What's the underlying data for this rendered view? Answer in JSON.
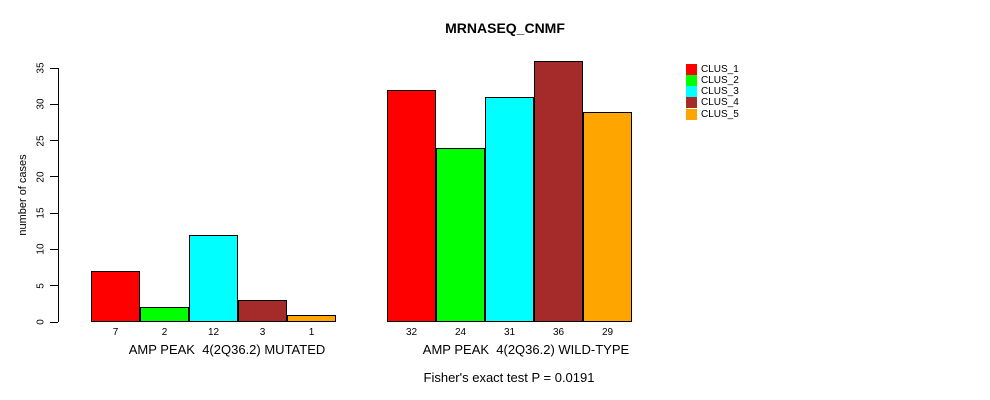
{
  "chart_data": {
    "type": "bar",
    "title": "MRNASEQ_CNMF",
    "xlabel": "",
    "ylabel": "number of cases",
    "ylim": [
      0,
      35
    ],
    "yticks": [
      0,
      5,
      10,
      15,
      20,
      25,
      30,
      35
    ],
    "grid": false,
    "legend_position": "right",
    "categories": [
      "AMP PEAK  4(2Q36.2) MUTATED",
      "AMP PEAK  4(2Q36.2) WILD-TYPE"
    ],
    "series": [
      {
        "name": "CLUS_1",
        "color": "#FF0000",
        "values": [
          7,
          32
        ]
      },
      {
        "name": "CLUS_2",
        "color": "#00FF00",
        "values": [
          2,
          24
        ]
      },
      {
        "name": "CLUS_3",
        "color": "#00FFFF",
        "values": [
          12,
          31
        ]
      },
      {
        "name": "CLUS_4",
        "color": "#A52A2A",
        "values": [
          3,
          36
        ]
      },
      {
        "name": "CLUS_5",
        "color": "#FFA500",
        "values": [
          1,
          29
        ]
      }
    ],
    "bar_value_labels_shown": true,
    "annotation": "Fisher's exact test P = 0.0191"
  }
}
